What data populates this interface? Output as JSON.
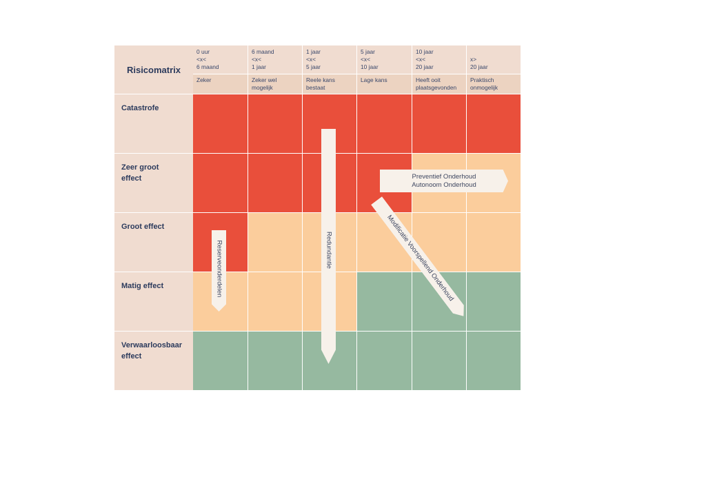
{
  "title": "Risicomatrix",
  "columns": [
    {
      "time": [
        "0 uur",
        "<x<",
        "6 maand"
      ],
      "probability": [
        "Zeker"
      ]
    },
    {
      "time": [
        "6 maand",
        "<x<",
        "1 jaar"
      ],
      "probability": [
        "Zeker wel",
        "mogelijk"
      ]
    },
    {
      "time": [
        "1 jaar",
        "<x<",
        "5 jaar"
      ],
      "probability": [
        "Reele kans",
        "bestaat"
      ]
    },
    {
      "time": [
        "5 jaar",
        "<x<",
        "10 jaar"
      ],
      "probability": [
        "Lage kans"
      ]
    },
    {
      "time": [
        "10 jaar",
        "<x<",
        "20 jaar"
      ],
      "probability": [
        "Heeft ooit",
        "plaatsgevonden"
      ]
    },
    {
      "time": [
        "",
        "x>",
        "20 jaar"
      ],
      "probability": [
        "Praktisch",
        "onmogelijk"
      ]
    }
  ],
  "rows": [
    {
      "label": "Catastrofe",
      "levels": [
        "red",
        "red",
        "red",
        "red",
        "red",
        "red"
      ]
    },
    {
      "label": "Zeer groot effect",
      "levels": [
        "red",
        "red",
        "red",
        "red",
        "orange",
        "orange"
      ]
    },
    {
      "label": "Groot effect",
      "levels": [
        "red",
        "orange",
        "orange",
        "orange",
        "orange",
        "orange"
      ]
    },
    {
      "label": "Matig effect",
      "levels": [
        "orange",
        "orange",
        "orange",
        "green",
        "green",
        "green"
      ]
    },
    {
      "label": "Verwaarloosbaar effect",
      "levels": [
        "green",
        "green",
        "green",
        "green",
        "green",
        "green"
      ]
    }
  ],
  "colors": {
    "red": "#e94f3b",
    "orange": "#fbcd9c",
    "green": "#96b9a0",
    "header": "#f0dcd0"
  },
  "arrows": {
    "redundantie": "Redundantie",
    "reserveonderdelen": "Reserveonderdelen",
    "preventief": [
      "Preventief Onderhoud",
      "Autonoom Onderhoud"
    ],
    "modificatie": "Modificatie Voorspellend Onderhoud"
  }
}
